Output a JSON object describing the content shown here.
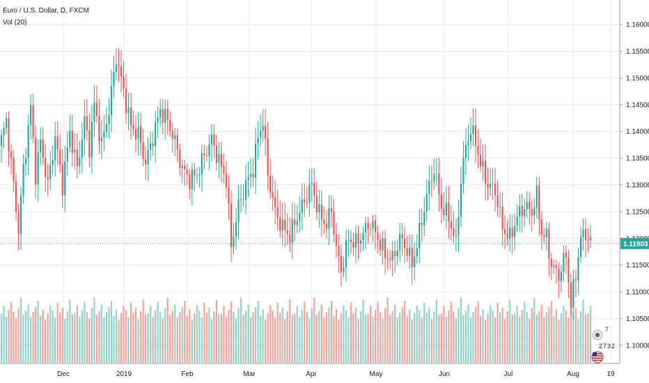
{
  "header": {
    "symbol_line": "Euro / U.S. Dollar, D, FXCM",
    "volume_line": "Vol (20)"
  },
  "colors": {
    "up": "#26a69a",
    "down": "#ef5350",
    "up_volume": "#8fd3c8",
    "down_volume": "#f5a19a",
    "grid": "#e6e9ef",
    "axis_text": "#131722",
    "last_price_bg": "#26a69a",
    "last_price_line": "#26a69a"
  },
  "icons": [
    "calendar-earnings-icon",
    "us-flag-icon"
  ],
  "event_labels": [
    "7",
    "2",
    "7",
    "3",
    "2"
  ],
  "chart_data": {
    "type": "candlestick",
    "title": "Euro / U.S. Dollar, D, FXCM",
    "indicator": "Vol (20)",
    "y_ticks": [
      "1.16000",
      "1.15500",
      "1.15000",
      "1.14500",
      "1.14000",
      "1.13500",
      "1.13000",
      "1.12500",
      "1.12000",
      "1.11500",
      "1.11000",
      "1.10500",
      "1.10000"
    ],
    "ylim": [
      1.0975,
      1.1625
    ],
    "x_tick_labels": [
      "Dec",
      "2019",
      "Feb",
      "Mar",
      "Apr",
      "May",
      "Jun",
      "Jul",
      "Aug",
      "19"
    ],
    "last_price": "1.11903",
    "grid": true,
    "waypoints": [
      [
        0,
        1.1385
      ],
      [
        2,
        1.142
      ],
      [
        5,
        1.13
      ],
      [
        7,
        1.1215
      ],
      [
        9,
        1.133
      ],
      [
        12,
        1.1445
      ],
      [
        14,
        1.132
      ],
      [
        16,
        1.138
      ],
      [
        19,
        1.13
      ],
      [
        22,
        1.139
      ],
      [
        25,
        1.13
      ],
      [
        28,
        1.14
      ],
      [
        31,
        1.133
      ],
      [
        34,
        1.142
      ],
      [
        36,
        1.137
      ],
      [
        38,
        1.145
      ],
      [
        41,
        1.1375
      ],
      [
        44,
        1.144
      ],
      [
        47,
        1.154
      ],
      [
        50,
        1.1475
      ],
      [
        53,
        1.141
      ],
      [
        56,
        1.1395
      ],
      [
        59,
        1.134
      ],
      [
        62,
        1.139
      ],
      [
        65,
        1.144
      ],
      [
        68,
        1.142
      ],
      [
        71,
        1.138
      ],
      [
        74,
        1.133
      ],
      [
        77,
        1.131
      ],
      [
        80,
        1.132
      ],
      [
        83,
        1.1355
      ],
      [
        86,
        1.1385
      ],
      [
        89,
        1.1345
      ],
      [
        92,
        1.131
      ],
      [
        94,
        1.1185
      ],
      [
        97,
        1.126
      ],
      [
        100,
        1.13
      ],
      [
        103,
        1.133
      ],
      [
        105,
        1.139
      ],
      [
        107,
        1.142
      ],
      [
        109,
        1.132
      ],
      [
        112,
        1.125
      ],
      [
        115,
        1.122
      ],
      [
        118,
        1.1205
      ],
      [
        121,
        1.124
      ],
      [
        124,
        1.127
      ],
      [
        127,
        1.13
      ],
      [
        130,
        1.1245
      ],
      [
        133,
        1.1225
      ],
      [
        135,
        1.1255
      ],
      [
        137,
        1.118
      ],
      [
        139,
        1.114
      ],
      [
        142,
        1.12
      ],
      [
        145,
        1.119
      ],
      [
        148,
        1.121
      ],
      [
        151,
        1.123
      ],
      [
        154,
        1.12
      ],
      [
        157,
        1.117
      ],
      [
        160,
        1.116
      ],
      [
        163,
        1.12
      ],
      [
        166,
        1.118
      ],
      [
        168,
        1.115
      ],
      [
        171,
        1.121
      ],
      [
        174,
        1.128
      ],
      [
        177,
        1.133
      ],
      [
        180,
        1.126
      ],
      [
        183,
        1.124
      ],
      [
        186,
        1.119
      ],
      [
        188,
        1.131
      ],
      [
        190,
        1.137
      ],
      [
        192,
        1.1405
      ],
      [
        194,
        1.138
      ],
      [
        196,
        1.134
      ],
      [
        199,
        1.13
      ],
      [
        202,
        1.129
      ],
      [
        205,
        1.122
      ],
      [
        208,
        1.12
      ],
      [
        211,
        1.124
      ],
      [
        214,
        1.126
      ],
      [
        217,
        1.125
      ],
      [
        219,
        1.128
      ],
      [
        221,
        1.121
      ],
      [
        223,
        1.12
      ],
      [
        225,
        1.115
      ],
      [
        228,
        1.113
      ],
      [
        231,
        1.117
      ],
      [
        233,
        1.1075
      ],
      [
        235,
        1.1135
      ],
      [
        237,
        1.12
      ],
      [
        239,
        1.121
      ],
      [
        241,
        1.119
      ]
    ],
    "volume_pattern": [
      0.55,
      0.72,
      0.48,
      0.63,
      0.81,
      0.59,
      0.44,
      0.67,
      0.9,
      0.52,
      0.61,
      0.75,
      0.47,
      0.58,
      0.69,
      0.83,
      0.5,
      0.64,
      0.41,
      0.56,
      0.73,
      0.62,
      0.46,
      0.79,
      0.57,
      0.68,
      0.43,
      0.6,
      0.86,
      0.53
    ]
  }
}
